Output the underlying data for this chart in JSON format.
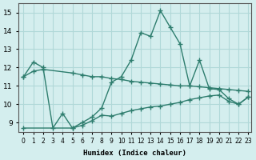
{
  "xlabel": "Humidex (Indice chaleur)",
  "ylabel": "",
  "background_color": "#d4eeee",
  "grid_color": "#b0d8d8",
  "line_color": "#2e7d6e",
  "xlim": [
    0,
    23
  ],
  "ylim": [
    8.5,
    15.5
  ],
  "yticks": [
    9,
    10,
    11,
    12,
    13,
    14,
    15
  ],
  "xticks": [
    0,
    1,
    2,
    3,
    4,
    5,
    6,
    7,
    8,
    9,
    10,
    11,
    12,
    13,
    14,
    15,
    16,
    17,
    18,
    19,
    20,
    21,
    22,
    23
  ],
  "line1_x": [
    0,
    1,
    2,
    3,
    4,
    5,
    6,
    7,
    8,
    9,
    10,
    11,
    12,
    13,
    14,
    15,
    16,
    17,
    18,
    19,
    20,
    21,
    22,
    23
  ],
  "line1_y": [
    11.5,
    12.3,
    12.0,
    8.7,
    9.5,
    8.7,
    9.0,
    9.3,
    9.8,
    11.2,
    11.5,
    12.4,
    13.9,
    13.7,
    15.1,
    14.2,
    13.3,
    11.0,
    12.4,
    10.85,
    10.8,
    10.3,
    10.0,
    10.4
  ],
  "line2_x": [
    0,
    1,
    2,
    5,
    6,
    7,
    8,
    9,
    10,
    11,
    12,
    13,
    14,
    15,
    16,
    17,
    18,
    19,
    20,
    21,
    22,
    23
  ],
  "line2_y": [
    11.5,
    11.8,
    11.9,
    11.7,
    11.6,
    11.5,
    11.5,
    11.4,
    11.35,
    11.25,
    11.2,
    11.15,
    11.1,
    11.05,
    11.0,
    11.0,
    10.95,
    10.9,
    10.85,
    10.8,
    10.75,
    10.7
  ],
  "line3_x": [
    0,
    5,
    6,
    7,
    8,
    9,
    10,
    11,
    12,
    13,
    14,
    15,
    16,
    17,
    18,
    19,
    20,
    21,
    22,
    23
  ],
  "line3_y": [
    8.7,
    8.7,
    8.85,
    9.1,
    9.4,
    9.35,
    9.5,
    9.65,
    9.75,
    9.85,
    9.9,
    10.0,
    10.1,
    10.25,
    10.35,
    10.45,
    10.5,
    10.15,
    10.0,
    10.4
  ]
}
